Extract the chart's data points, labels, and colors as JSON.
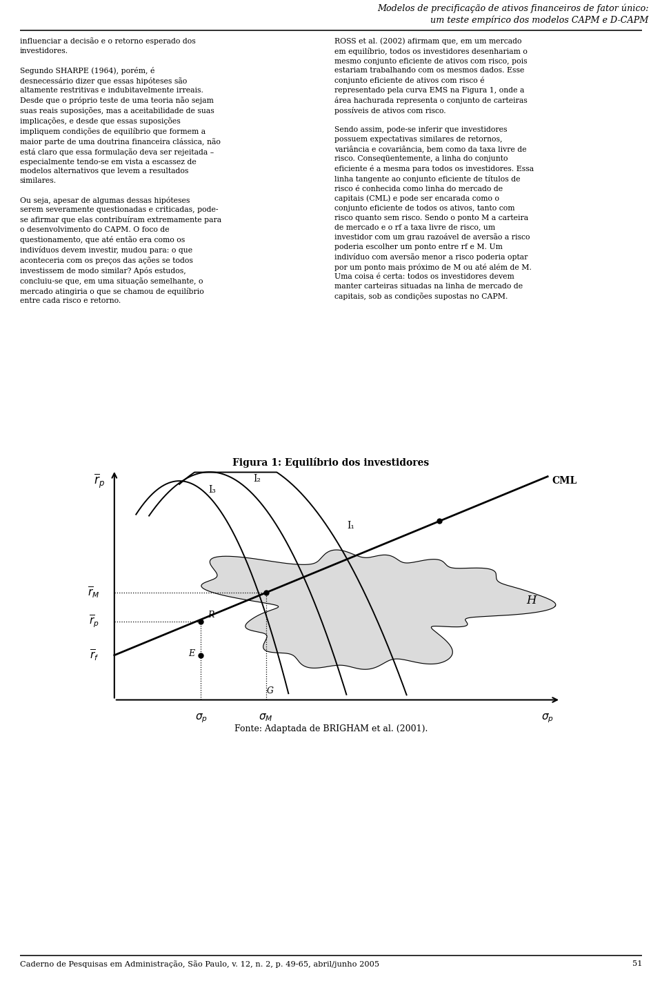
{
  "header_line1": "Modelos de precificação de ativos financeiros de fator único:",
  "header_line2": "um teste empírico dos modelos CAPM e D-CAPM",
  "footer_text": "Caderno de Pesquisas em Administração, São Paulo, v. 12, n. 2, p. 49-65, abril/junho 2005",
  "footer_page": "51",
  "figure_title": "Figura 1: Equilíbrio dos investidores",
  "fonte_text": "Fonte: Adaptada de BRIGHAM et al. (2001).",
  "left_col": "influenciar a decisão e o retorno esperado dos\ninvestidores.\n\nSegundo SHARPE (1964), porém, é\ndesnecessário dizer que essas hipóteses são\naltamente restritivas e indubitavelmente irreais.\nDesde que o próprio teste de uma teoria não sejam\nsuas reais suposições, mas a aceitabilidade de suas\nimplicações, e desde que essas suposições\nimpliquem condições de equilíbrio que formem a\nmaior parte de uma doutrina financeira clássica, não\nestá claro que essa formulação deva ser rejeitada –\nespecialmente tendo-se em vista a escassez de\nmodelos alternativos que levem a resultados\nsimilares.\n\nOu seja, apesar de algumas dessas hipóteses\nserem severamente questionadas e criticadas, pode-\nse afirmar que elas contribuíram extremamente para\no desenvolvimento do CAPM. O foco de\nquestionamento, que até então era como os\nindivíduos devem investir, mudou para: o que\naconteceria com os preços das ações se todos\ninvestissem de modo similar? Após estudos,\nconcluiu-se que, em uma situação semelhante, o\nmercado atingiria o que se chamou de equilíbrio\nentre cada risco e retorno.",
  "right_col": "ROSS et al. (2002) afirmam que, em um mercado\nem equilíbrio, todos os investidores desenhariam o\nmesmo conjunto eficiente de ativos com risco, pois\nestariam trabalhando com os mesmos dados. Esse\nconjunto eficiente de ativos com risco é\nrepresentado pela curva EMS na Figura 1, onde a\nárea hachurada representa o conjunto de carteiras\npossíveis de ativos com risco.\n\nSendo assim, pode-se inferir que investidores\npossuem expectativas similares de retornos,\nvariância e covariância, bem como da taxa livre de\nrisco. Conseqüentemente, a linha do conjunto\neficiente é a mesma para todos os investidores. Essa\nlinha tangente ao conjunto eficiente de títulos de\nrisco é conhecida como linha do mercado de\ncapitais (CML) e pode ser encarada como o\nconjunto eficiente de todos os ativos, tanto com\nrisco quanto sem risco. Sendo o ponto M a carteira\nde mercado e o rf a taxa livre de risco, um\ninvestidor com um grau razoável de aversão a risco\npoderia escolher um ponto entre rf e M. Um\nindivíduo com aversão menor a risco poderia optar\npor um ponto mais próximo de M ou até além de M.\nUma coisa é certa: todos os investidores devem\nmanter carteiras situadas na linha de mercado de\ncapitais, sob as condições supostas no CAPM.",
  "bg_color": "#ffffff",
  "text_color": "#000000"
}
